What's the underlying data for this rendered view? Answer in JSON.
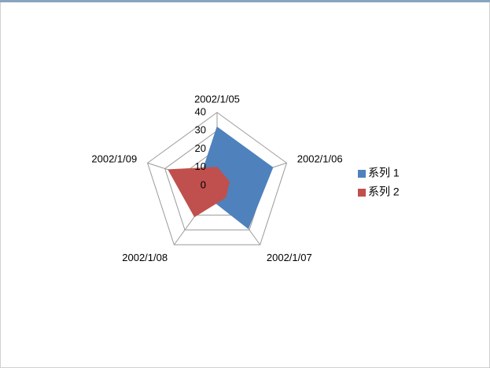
{
  "chart_data": {
    "type": "radar",
    "categories": [
      "2002/1/05",
      "2002/1/06",
      "2002/1/07",
      "2002/1/08",
      "2002/1/09"
    ],
    "series": [
      {
        "name": "系列 1",
        "color": "#4f81bd",
        "values": [
          32,
          32,
          29,
          8,
          10
        ]
      },
      {
        "name": "系列 2",
        "color": "#c0504d",
        "values": [
          10,
          7,
          8,
          21,
          28
        ]
      }
    ],
    "rlim": [
      0,
      40
    ],
    "rticks": [
      0,
      10,
      20,
      30,
      40
    ],
    "grid": true,
    "legend": "right"
  }
}
